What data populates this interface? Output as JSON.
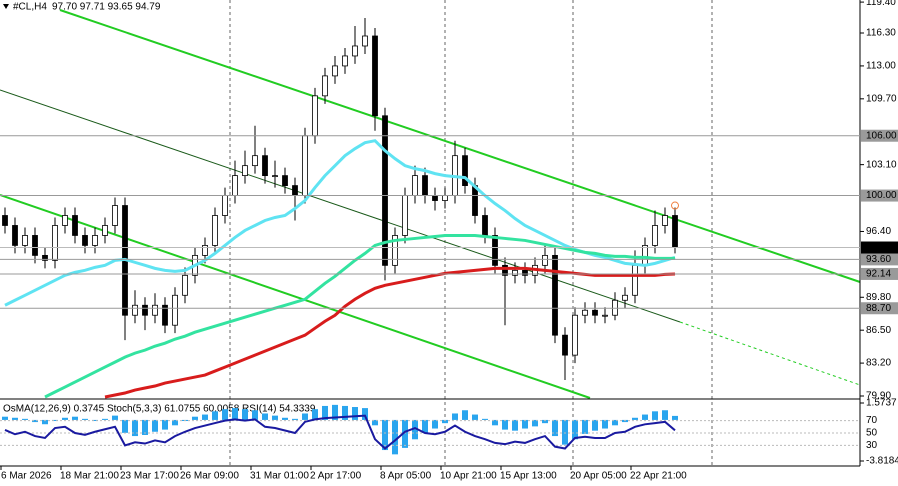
{
  "chart_data": {
    "type": "candlestick",
    "symbol": "#CL,H4",
    "quote_text": "97.70 97.71 93.65 94.79",
    "indicator_label": "OsMA(12,26,9) 0.3745  Stoch(5,3,3) 61.0755 60.0058  RSI(14) 54.3339",
    "categories": [
      "6 Mar 2026",
      null,
      null,
      null,
      null,
      null,
      "18 Mar 21:00",
      null,
      null,
      null,
      null,
      null,
      "23 Mar 17:00",
      null,
      null,
      null,
      null,
      null,
      "26 Mar 09:00",
      null,
      null,
      null,
      null,
      null,
      null,
      "31 Mar 01:00",
      null,
      null,
      null,
      null,
      null,
      "2 Apr 17:00",
      null,
      null,
      null,
      null,
      null,
      null,
      "8 Apr 05:00",
      null,
      null,
      null,
      null,
      null,
      "10 Apr 21:00",
      null,
      null,
      null,
      null,
      null,
      "15 Apr 13:00",
      null,
      null,
      null,
      null,
      null,
      null,
      "20 Apr 05:00",
      null,
      null,
      null,
      null,
      null,
      "22 Apr 21:00",
      null,
      null,
      null,
      null
    ],
    "open": [
      98,
      97,
      95,
      96,
      94,
      93.5,
      97,
      98,
      96,
      95,
      96,
      97,
      99,
      88,
      89,
      88,
      89,
      87,
      90,
      92,
      94,
      95,
      98,
      100,
      102,
      103,
      104,
      102,
      102,
      101,
      100,
      106,
      110,
      112,
      113,
      114,
      115,
      116,
      108,
      93,
      96,
      100,
      102,
      100,
      99.5,
      100,
      104,
      101,
      98,
      96,
      93,
      92,
      92.5,
      92,
      93,
      94,
      86,
      84,
      88,
      88.5,
      88,
      88,
      89.5,
      90,
      93,
      95,
      97,
      98
    ],
    "high": [
      98.8,
      97.8,
      96.8,
      96.8,
      94.8,
      97.8,
      98.8,
      98.8,
      96.8,
      96.8,
      97.8,
      99.8,
      99.8,
      90.5,
      89.8,
      90.2,
      89.8,
      90.8,
      92.8,
      94.8,
      95.8,
      98.8,
      100.8,
      103.5,
      104.5,
      107,
      104.8,
      103.5,
      102.8,
      101.8,
      106.8,
      110.8,
      112.8,
      114,
      114.8,
      117,
      117.8,
      116.8,
      108.8,
      96.8,
      100.8,
      103,
      102.8,
      100.8,
      100.8,
      105.5,
      104.8,
      101.8,
      98.8,
      96.8,
      93.8,
      93.3,
      93.3,
      93.8,
      95.2,
      94.8,
      86.8,
      88.8,
      89.3,
      89.3,
      88.8,
      90.3,
      90.8,
      94.5,
      95.8,
      98.5,
      98.8,
      98.8
    ],
    "low": [
      96.2,
      94.2,
      94.2,
      93.2,
      92.7,
      92.7,
      96.2,
      95.2,
      94.2,
      94.2,
      95.2,
      96.2,
      85.5,
      87.2,
      86.5,
      87.2,
      86.2,
      86.2,
      89.2,
      91.2,
      93.2,
      94.2,
      97.2,
      99.2,
      101.2,
      102.2,
      101.2,
      100.8,
      100.2,
      97.5,
      99.2,
      105.2,
      109.2,
      111.2,
      112.2,
      113.2,
      114.2,
      106.5,
      91.5,
      92.2,
      95.2,
      99.2,
      99.2,
      98.5,
      98.7,
      99.2,
      100.2,
      97.2,
      95.2,
      92.2,
      87,
      91.2,
      91.2,
      91.2,
      92.2,
      85.2,
      81.5,
      83.2,
      87.2,
      87.2,
      87.2,
      87.5,
      88.7,
      89.2,
      92.2,
      94.2,
      96.2,
      94.2
    ],
    "close": [
      97,
      95,
      96,
      94,
      93.5,
      97,
      98,
      96,
      95,
      96,
      97,
      99,
      88,
      89,
      88,
      89,
      87,
      90,
      92,
      94,
      95,
      98,
      100,
      102,
      103,
      104,
      102,
      102,
      101,
      100,
      106,
      110,
      112,
      113,
      114,
      115,
      116,
      108,
      93,
      96,
      100,
      102,
      100,
      99.5,
      100,
      104,
      101,
      98,
      96,
      93,
      92,
      92.5,
      92,
      93,
      94,
      86,
      84,
      88,
      88.5,
      88,
      88,
      89.5,
      90,
      93,
      95,
      97,
      98,
      94.79
    ],
    "ma_lines": [
      {
        "color": "#5fe3f2",
        "values": [
          89.0,
          89.5,
          90.0,
          90.5,
          91.0,
          91.5,
          92.0,
          92.3,
          92.5,
          92.8,
          93.0,
          93.5,
          93.6,
          93.3,
          93.0,
          92.7,
          92.5,
          92.4,
          92.5,
          93.0,
          93.5,
          94.2,
          95.0,
          95.8,
          96.5,
          97.0,
          97.5,
          97.8,
          98.0,
          98.7,
          99.5,
          100.8,
          102.0,
          103.0,
          104.0,
          104.7,
          105.3,
          105.5,
          104.5,
          103.7,
          103.0,
          102.7,
          102.5,
          102.2,
          102.0,
          101.9,
          101.8,
          100.9,
          100.0,
          99.2,
          98.5,
          97.7,
          97.0,
          96.5,
          96.0,
          95.5,
          95.0,
          94.6,
          94.3,
          94.0,
          93.8,
          93.5,
          93.2,
          93.1,
          93.0,
          93.2,
          93.5,
          93.8
        ]
      },
      {
        "color": "#33e3a0",
        "values": [
          null,
          null,
          null,
          null,
          79.8,
          80.3,
          80.8,
          81.3,
          81.8,
          82.3,
          82.8,
          83.3,
          83.8,
          84.2,
          84.5,
          84.9,
          85.2,
          85.6,
          85.9,
          86.3,
          86.6,
          86.9,
          87.2,
          87.5,
          87.8,
          88.1,
          88.4,
          88.7,
          89.0,
          89.3,
          89.6,
          90.4,
          91.2,
          91.9,
          92.7,
          93.5,
          94.2,
          95.0,
          95.3,
          95.5,
          95.6,
          95.7,
          95.8,
          95.9,
          96.0,
          96.0,
          96.0,
          96.0,
          95.9,
          95.8,
          95.7,
          95.6,
          95.5,
          95.3,
          95.1,
          94.9,
          94.7,
          94.5,
          94.3,
          94.2,
          94.0,
          93.9,
          93.9,
          93.8,
          93.8,
          93.7,
          93.7,
          93.7
        ]
      },
      {
        "color": "#d81c1c",
        "values": [
          null,
          null,
          null,
          null,
          null,
          null,
          null,
          null,
          null,
          null,
          79.8,
          80.0,
          80.2,
          80.5,
          80.7,
          80.9,
          81.2,
          81.4,
          81.6,
          81.8,
          82.0,
          82.4,
          82.8,
          83.2,
          83.6,
          84.0,
          84.4,
          84.8,
          85.2,
          85.6,
          86.0,
          86.7,
          87.4,
          88.0,
          88.9,
          89.6,
          90.2,
          90.7,
          91.0,
          91.2,
          91.4,
          91.6,
          91.8,
          92.0,
          92.2,
          92.3,
          92.4,
          92.5,
          92.6,
          92.7,
          92.7,
          92.7,
          92.7,
          92.6,
          92.5,
          92.4,
          92.3,
          92.2,
          92.1,
          92.0,
          92.0,
          92.0,
          92.0,
          92.0,
          92.0,
          92.0,
          92.1,
          92.14
        ]
      }
    ],
    "ylim": [
      79.7,
      119.61
    ],
    "yticks": [
      {
        "value": 119.4,
        "label": "119.40"
      },
      {
        "value": 116.3,
        "label": "116.30"
      },
      {
        "value": 113,
        "label": "113.00"
      },
      {
        "value": 109.7,
        "label": "109.70"
      },
      {
        "value": 103.1,
        "label": "103.10"
      },
      {
        "value": 96.4,
        "label": "96.40"
      },
      {
        "value": 89.8,
        "label": "89.80"
      },
      {
        "value": 86.5,
        "label": "86.50"
      },
      {
        "value": 83.2,
        "label": "83.20"
      },
      {
        "value": 79.9,
        "label": "79.90"
      }
    ],
    "levels": [
      {
        "value": 106,
        "label": "106.00"
      },
      {
        "value": 100,
        "label": "100.00"
      },
      {
        "value": 93.6,
        "label": "93.60"
      },
      {
        "value": 92.14,
        "label": "92.14"
      },
      {
        "value": 88.7,
        "label": "88.70"
      }
    ],
    "last_price": 94.79,
    "osma": {
      "color": "#2aa5ee",
      "values": [
        0.3,
        0.2,
        0.1,
        -0.2,
        -0.4,
        -0.1,
        0.2,
        0.3,
        0.1,
        -0.1,
        0.1,
        0.4,
        -1.2,
        -1.5,
        -1.4,
        -1.1,
        -0.9,
        -0.5,
        -0.1,
        0.3,
        0.5,
        0.8,
        1.0,
        1.1,
        1.0,
        0.9,
        0.6,
        0.4,
        0.2,
        0.1,
        0.6,
        1.0,
        1.3,
        1.4,
        1.3,
        1.2,
        1.1,
        -0.5,
        -2.8,
        -3.2,
        -2.6,
        -1.8,
        -1.2,
        -0.8,
        -0.3,
        0.6,
        0.9,
        0.5,
        0.1,
        -0.5,
        -0.9,
        -1.0,
        -0.8,
        -0.6,
        -0.3,
        -1.5,
        -2.3,
        -1.8,
        -1.3,
        -1.0,
        -0.8,
        -0.5,
        -0.2,
        0.2,
        0.5,
        0.8,
        0.9,
        0.3745
      ],
      "ylim": [
        -3.8184,
        1.5737
      ],
      "yticks": [
        {
          "value": 1.5737,
          "label": "1.5737"
        },
        {
          "value": -3.8184,
          "label": "-3.8184"
        }
      ]
    },
    "rsi": {
      "color": "#1a1aa0",
      "values": [
        55,
        48,
        52,
        45,
        42,
        58,
        60,
        50,
        47,
        52,
        56,
        60,
        30,
        35,
        33,
        38,
        35,
        45,
        52,
        58,
        62,
        66,
        70,
        72,
        70,
        72,
        60,
        58,
        54,
        50,
        68,
        72,
        74,
        75,
        76,
        77,
        78,
        40,
        25,
        38,
        52,
        58,
        50,
        48,
        52,
        62,
        52,
        45,
        40,
        34,
        32,
        36,
        34,
        40,
        45,
        28,
        25,
        42,
        44,
        42,
        42,
        50,
        52,
        60,
        64,
        66,
        68,
        54.3339
      ],
      "ylim": [
        0,
        100
      ],
      "yticks": [
        70,
        50,
        30
      ]
    }
  }
}
